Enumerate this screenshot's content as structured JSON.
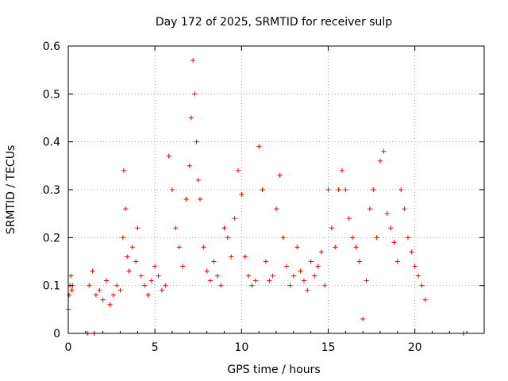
{
  "chart_data": {
    "type": "scatter",
    "title": "Day 172 of 2025, SRMTID for receiver sulp",
    "xlabel": "GPS time / hours",
    "ylabel": "SRMTID / TECUs",
    "xlim": [
      0,
      24
    ],
    "ylim": [
      0,
      0.6
    ],
    "x_ticks": [
      0,
      5,
      10,
      15,
      20
    ],
    "y_ticks": [
      0,
      0.1,
      0.2,
      0.3,
      0.4,
      0.5,
      0.6
    ],
    "x_tick_labels": [
      "0",
      "5",
      "10",
      "15",
      "20"
    ],
    "y_tick_labels": [
      "0",
      "0.1",
      "0.2",
      "0.3",
      "0.4",
      "0.5",
      "0.6"
    ],
    "grid": true,
    "marker": "plus",
    "series": [
      {
        "name": "SRMTID",
        "color": "#ff0000",
        "x": [
          0.0,
          0.05,
          0.1,
          0.15,
          0.2,
          0.25,
          1.1,
          1.5,
          1.2,
          1.4,
          1.6,
          1.8,
          2.0,
          2.2,
          2.4,
          2.6,
          2.8,
          3.0,
          3.15,
          3.2,
          3.3,
          3.4,
          3.5,
          3.7,
          3.9,
          4.0,
          4.2,
          4.4,
          4.6,
          4.8,
          5.0,
          5.2,
          5.4,
          5.6,
          5.8,
          6.0,
          6.2,
          6.4,
          6.6,
          6.8,
          7.0,
          7.1,
          7.2,
          7.3,
          7.4,
          7.5,
          7.6,
          7.8,
          8.0,
          8.2,
          8.4,
          8.6,
          8.8,
          9.0,
          9.2,
          9.4,
          9.6,
          9.8,
          10.0,
          10.2,
          10.4,
          10.6,
          10.8,
          11.0,
          11.2,
          11.4,
          11.6,
          11.8,
          12.0,
          12.2,
          12.4,
          12.6,
          12.8,
          13.0,
          13.2,
          13.4,
          13.6,
          13.8,
          14.0,
          14.2,
          14.4,
          14.6,
          14.8,
          15.0,
          15.2,
          15.4,
          15.6,
          15.8,
          16.0,
          16.2,
          16.4,
          16.6,
          16.8,
          17.0,
          17.2,
          17.4,
          17.6,
          17.8,
          18.0,
          18.2,
          18.4,
          18.6,
          18.8,
          19.0,
          19.2,
          19.4,
          19.6,
          19.8,
          20.0,
          20.2,
          20.4,
          20.6,
          22.8
        ],
        "y": [
          0.05,
          0.08,
          0.1,
          0.12,
          0.09,
          0.1,
          0.0,
          0.0,
          0.1,
          0.13,
          0.08,
          0.09,
          0.07,
          0.11,
          0.06,
          0.08,
          0.1,
          0.09,
          0.2,
          0.34,
          0.26,
          0.16,
          0.13,
          0.18,
          0.15,
          0.22,
          0.12,
          0.1,
          0.08,
          0.11,
          0.14,
          0.12,
          0.09,
          0.1,
          0.37,
          0.3,
          0.22,
          0.18,
          0.14,
          0.28,
          0.35,
          0.45,
          0.57,
          0.5,
          0.4,
          0.32,
          0.28,
          0.18,
          0.13,
          0.11,
          0.15,
          0.12,
          0.1,
          0.22,
          0.2,
          0.16,
          0.24,
          0.34,
          0.29,
          0.16,
          0.12,
          0.1,
          0.11,
          0.39,
          0.3,
          0.15,
          0.11,
          0.12,
          0.26,
          0.33,
          0.2,
          0.14,
          0.1,
          0.12,
          0.18,
          0.13,
          0.11,
          0.09,
          0.15,
          0.12,
          0.14,
          0.17,
          0.1,
          0.3,
          0.22,
          0.18,
          0.3,
          0.34,
          0.3,
          0.24,
          0.2,
          0.18,
          0.15,
          0.03,
          0.11,
          0.26,
          0.3,
          0.2,
          0.36,
          0.38,
          0.25,
          0.22,
          0.19,
          0.15,
          0.3,
          0.26,
          0.2,
          0.17,
          0.14,
          0.12,
          0.1,
          0.07,
          0.0
        ]
      }
    ]
  }
}
